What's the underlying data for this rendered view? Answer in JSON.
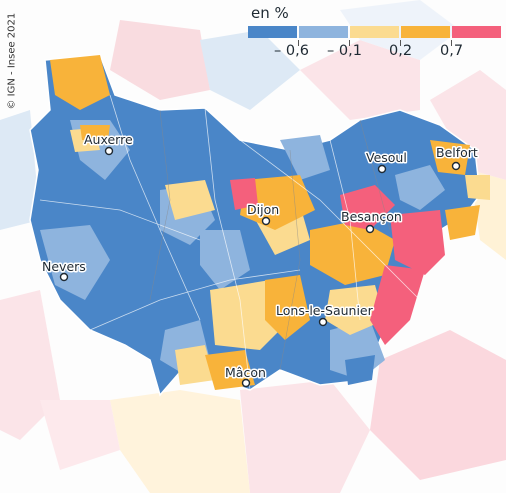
{
  "copyright": "© IGN - Insee 2021",
  "legend": {
    "title": "en %",
    "colors": [
      "#4a86c8",
      "#8eb4de",
      "#fbdb90",
      "#f8b33a",
      "#f4607c"
    ],
    "thresholds": [
      "– 0,6",
      "– 0,1",
      "0,2",
      "0,7"
    ]
  },
  "cities": [
    {
      "name": "Auxerre"
    },
    {
      "name": "Vesoul"
    },
    {
      "name": "Belfort"
    },
    {
      "name": "Dijon"
    },
    {
      "name": "Besançon"
    },
    {
      "name": "Nevers"
    },
    {
      "name": "Lons-le-Saunier"
    },
    {
      "name": "Mâcon"
    }
  ]
}
